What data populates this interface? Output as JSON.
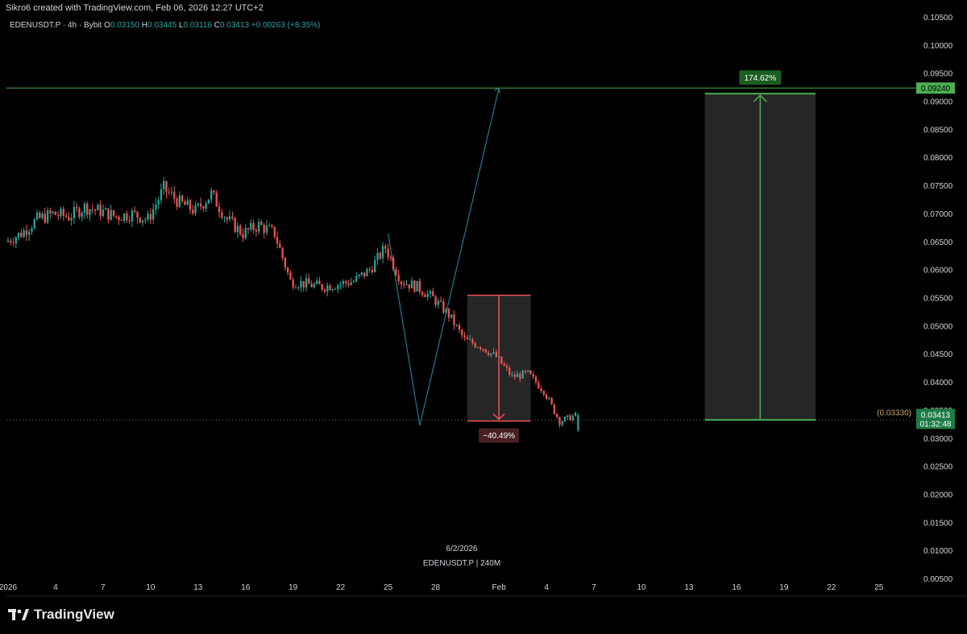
{
  "header": {
    "attribution": "Sikro6 created with TradingView.com, Feb 06, 2026 12:27 UTC+2"
  },
  "legend": {
    "symbol": "EDENUSDT.P · 4h · Bybit",
    "o_label": "O",
    "o": "0.03150",
    "h_label": "H",
    "h": "0.03445",
    "l_label": "L",
    "l": "0.03116",
    "c_label": "C",
    "c": "0.03413",
    "change": "+0.00263 (+8.35%)"
  },
  "watermark": {
    "date": "6/2/2026",
    "symbol": "EDENUSDT.P | 240M"
  },
  "price_axis": {
    "ticks": [
      "0.10500",
      "0.10000",
      "0.09500",
      "0.09000",
      "0.08500",
      "0.08000",
      "0.07500",
      "0.07000",
      "0.06500",
      "0.06000",
      "0.05500",
      "0.05000",
      "0.04500",
      "0.04000",
      "0.03500",
      "0.03000",
      "0.02500",
      "0.02000",
      "0.01500",
      "0.01000",
      "0.00500"
    ],
    "target_label": "0.09240",
    "last_price": "0.03413",
    "countdown": "01:32:48",
    "level_label": "(0.03330)"
  },
  "time_axis": {
    "ticks": [
      "2026",
      "4",
      "7",
      "10",
      "13",
      "16",
      "19",
      "22",
      "25",
      "28",
      "Feb",
      "4",
      "7",
      "10",
      "13",
      "16",
      "19",
      "22",
      "25"
    ]
  },
  "annotations": {
    "gain_pct": "174.62%",
    "loss_pct": "−40.49%"
  },
  "branding": {
    "name": "TradingView"
  },
  "colors": {
    "up": "#26a69a",
    "down": "#ef5350",
    "target_line": "#4caf50",
    "projection": "#1f7a8c",
    "loss_box": "#ef5350"
  },
  "chart_data": {
    "type": "candlestick",
    "symbol": "EDENUSDT.P",
    "timeframe": "4h",
    "exchange": "Bybit",
    "ylim": [
      0.0045,
      0.1055
    ],
    "x_start": "2026-01-01",
    "x_end": "2026-01-26",
    "last_ohlc": {
      "open": 0.0315,
      "high": 0.03445,
      "low": 0.03116,
      "close": 0.03413
    },
    "close_path": [
      [
        "2026-01-01",
        0.065
      ],
      [
        "2026-01-02",
        0.0665
      ],
      [
        "2026-01-03",
        0.069
      ],
      [
        "2026-01-04",
        0.07
      ],
      [
        "2026-01-05",
        0.0695
      ],
      [
        "2026-01-06",
        0.0712
      ],
      [
        "2026-01-07",
        0.0705
      ],
      [
        "2026-01-08",
        0.0695
      ],
      [
        "2026-01-09",
        0.07
      ],
      [
        "2026-01-10",
        0.069
      ],
      [
        "2026-01-11",
        0.0745
      ],
      [
        "2026-01-12",
        0.072
      ],
      [
        "2026-01-13",
        0.0705
      ],
      [
        "2026-01-14",
        0.0735
      ],
      [
        "2026-01-15",
        0.069
      ],
      [
        "2026-01-16",
        0.0665
      ],
      [
        "2026-01-17",
        0.068
      ],
      [
        "2026-01-18",
        0.0665
      ],
      [
        "2026-01-19",
        0.058
      ],
      [
        "2026-01-20",
        0.0575
      ],
      [
        "2026-01-21",
        0.057
      ],
      [
        "2026-01-22",
        0.0575
      ],
      [
        "2026-01-23",
        0.058
      ],
      [
        "2026-01-24",
        0.06
      ],
      [
        "2026-01-25",
        0.064
      ],
      [
        "2026-01-26",
        0.058
      ],
      [
        "2026-01-27",
        0.057
      ],
      [
        "2026-01-28",
        0.055
      ],
      [
        "2026-01-29",
        0.052
      ],
      [
        "2026-01-30",
        0.0475
      ],
      [
        "2026-01-31",
        0.0465
      ],
      [
        "2026-02-01",
        0.0445
      ],
      [
        "2026-02-02",
        0.041
      ],
      [
        "2026-02-03",
        0.0415
      ],
      [
        "2026-02-04",
        0.0385
      ],
      [
        "2026-02-05",
        0.033
      ],
      [
        "2026-02-06",
        0.0341
      ]
    ],
    "projection_path": [
      [
        "2026-01-25",
        0.0665
      ],
      [
        "2026-01-27",
        0.0323
      ],
      [
        "2026-02-01",
        0.0924
      ]
    ],
    "loss_box": {
      "from": "2026-01-30",
      "to": "2026-02-03",
      "top": 0.0555,
      "bottom": 0.0331,
      "pct": "−40.49%"
    },
    "gain_box": {
      "from": "2026-02-14",
      "to": "2026-02-21",
      "bottom": 0.0333,
      "top": 0.0914,
      "pct": "174.62%"
    },
    "target_level": 0.0924,
    "support_level": 0.0333,
    "grid": false
  }
}
